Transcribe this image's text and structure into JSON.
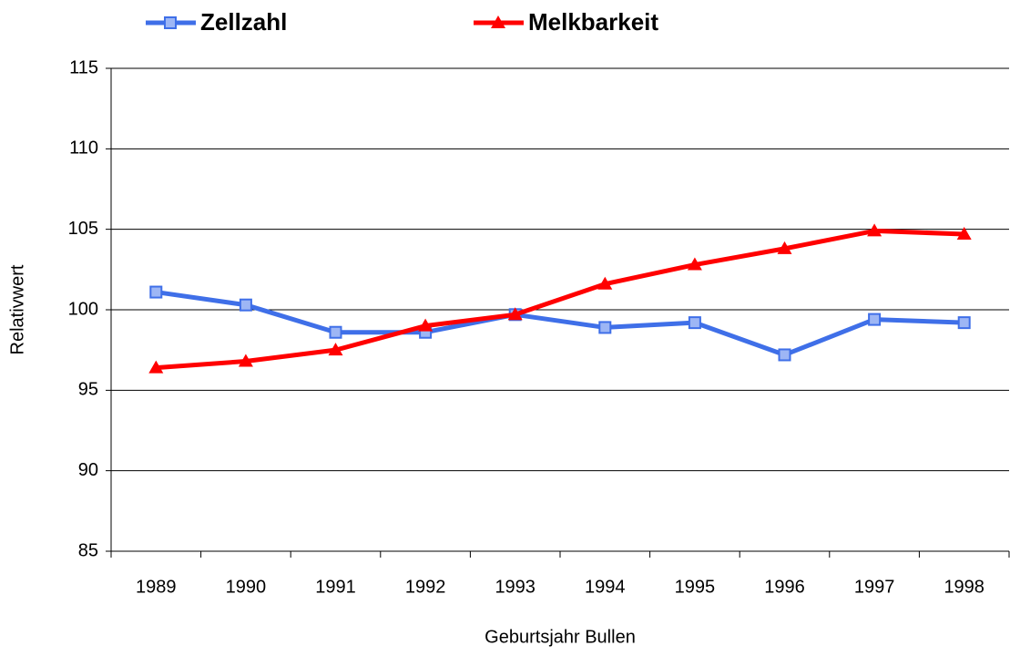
{
  "chart_data": {
    "type": "line",
    "x_label": "Geburtsjahr Bullen",
    "y_label": "Relativwert",
    "categories": [
      "1989",
      "1990",
      "1991",
      "1992",
      "1993",
      "1994",
      "1995",
      "1996",
      "1997",
      "1998"
    ],
    "series": [
      {
        "name": "Zellzahl",
        "color": "#3f6fe8",
        "marker": "square",
        "values": [
          101.1,
          100.3,
          98.6,
          98.6,
          99.7,
          98.9,
          99.2,
          97.2,
          99.4,
          99.2
        ]
      },
      {
        "name": "Melkbarkeit",
        "color": "#ff0000",
        "marker": "triangle",
        "values": [
          96.4,
          96.8,
          97.5,
          99.0,
          99.7,
          101.6,
          102.8,
          103.8,
          104.9,
          104.7
        ]
      }
    ],
    "ylim": [
      85,
      115
    ],
    "yticks": [
      85,
      90,
      95,
      100,
      105,
      110,
      115
    ],
    "grid": true
  }
}
